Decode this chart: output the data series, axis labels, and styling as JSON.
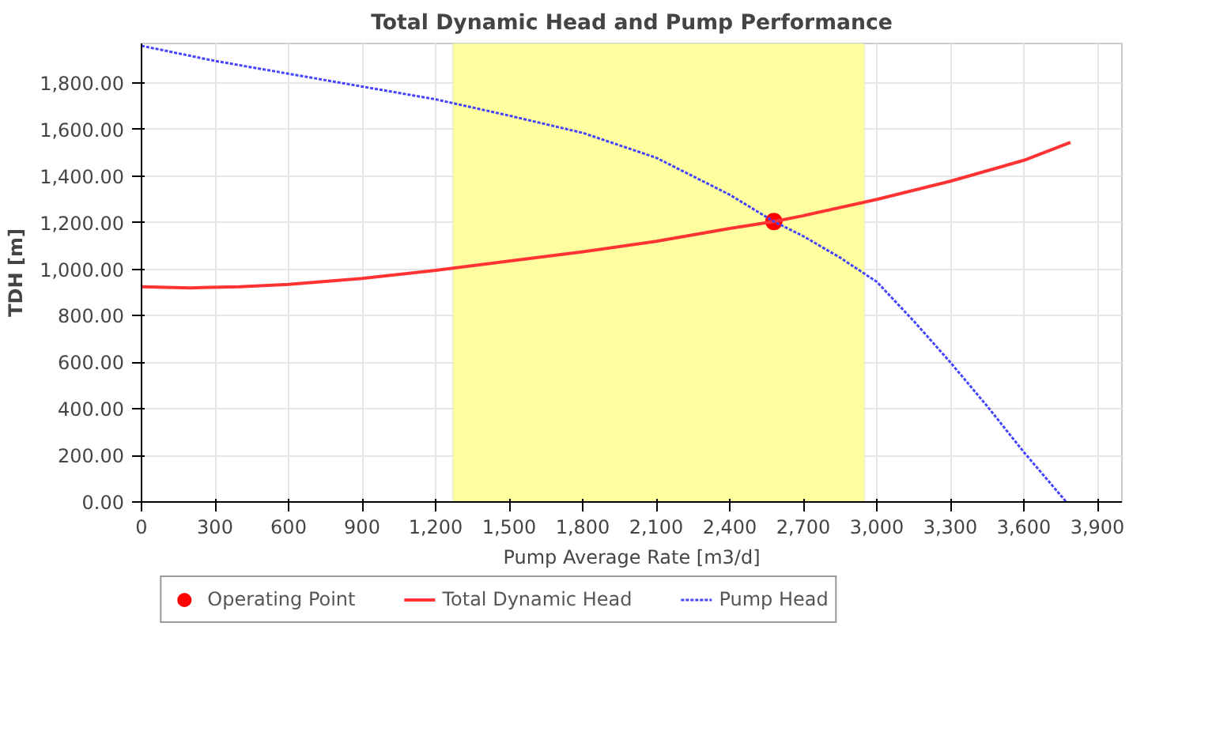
{
  "chart_data": {
    "type": "line",
    "title": "Total Dynamic Head and Pump Performance",
    "xlabel": "Pump Average Rate [m3/d]",
    "ylabel": "TDH [m]",
    "xlim": [
      0,
      4000
    ],
    "ylim": [
      0,
      1970
    ],
    "xticks": [
      0,
      300,
      600,
      900,
      {
        "value": 1200,
        "label": "1,200"
      },
      {
        "value": 1500,
        "label": "1,500"
      },
      {
        "value": 1800,
        "label": "1,800"
      },
      {
        "value": 2100,
        "label": "2,100"
      },
      {
        "value": 2400,
        "label": "2,400"
      },
      {
        "value": 2700,
        "label": "2,700"
      },
      {
        "value": 3000,
        "label": "3,000"
      },
      {
        "value": 3300,
        "label": "3,300"
      },
      {
        "value": 3600,
        "label": "3,600"
      },
      {
        "value": 3900,
        "label": "3,900"
      }
    ],
    "yticks": [
      {
        "value": 0,
        "label": "0.00"
      },
      {
        "value": 200,
        "label": "200.00"
      },
      {
        "value": 400,
        "label": "400.00"
      },
      {
        "value": 600,
        "label": "600.00"
      },
      {
        "value": 800,
        "label": "800.00"
      },
      {
        "value": 1000,
        "label": "1,000.00"
      },
      {
        "value": 1200,
        "label": "1,200.00"
      },
      {
        "value": 1400,
        "label": "1,400.00"
      },
      {
        "value": 1600,
        "label": "1,600.00"
      },
      {
        "value": 1800,
        "label": "1,800.00"
      }
    ],
    "grid": true,
    "legend": "bottom",
    "bands": [
      {
        "axis": "x",
        "from": 1270,
        "to": 2950,
        "color": "#ffffa0"
      }
    ],
    "series": [
      {
        "name": "Operating Point",
        "type": "scatter",
        "marker": "circle",
        "color": "#ff0000",
        "x": [
          2580
        ],
        "values": [
          1205
        ]
      },
      {
        "name": "Total Dynamic Head",
        "line_style": "solid",
        "color": "#ff3333",
        "x": [
          0,
          200,
          400,
          600,
          900,
          1200,
          1500,
          1800,
          2100,
          2400,
          2580,
          2700,
          3000,
          3300,
          3600,
          3790
        ],
        "values": [
          925,
          920,
          925,
          935,
          960,
          995,
          1035,
          1075,
          1120,
          1175,
          1205,
          1230,
          1300,
          1378,
          1468,
          1545
        ]
      },
      {
        "name": "Pump Head",
        "line_style": "dotted",
        "color": "#4444ff",
        "x": [
          0,
          300,
          600,
          900,
          1200,
          1500,
          1800,
          2100,
          2400,
          2580,
          2700,
          2850,
          3000,
          3150,
          3300,
          3450,
          3600,
          3773
        ],
        "values": [
          1960,
          1895,
          1840,
          1785,
          1730,
          1660,
          1586,
          1479,
          1320,
          1205,
          1142,
          1050,
          946,
          778,
          600,
          412,
          214,
          0
        ]
      }
    ]
  }
}
